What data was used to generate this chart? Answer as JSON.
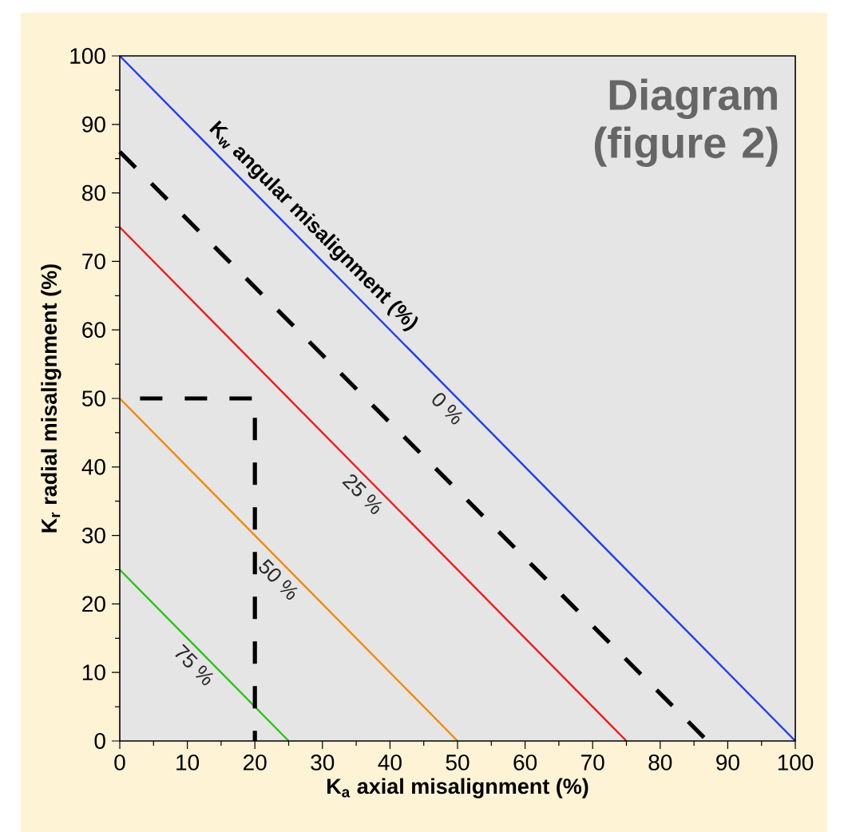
{
  "chart_data": {
    "type": "line",
    "title": "Diagram (figure 2)",
    "xlabel": "K$_{a}$ axial misalignment (%)",
    "ylabel": "K$_{r}$ radial misalignment (%)",
    "xlim": [
      0,
      100
    ],
    "ylim": [
      0,
      100
    ],
    "xticks": [
      0,
      10,
      20,
      30,
      40,
      50,
      60,
      70,
      80,
      90,
      100
    ],
    "yticks": [
      0,
      10,
      20,
      30,
      40,
      50,
      60,
      70,
      80,
      90,
      100
    ],
    "grid": false,
    "legend": false,
    "marker": "none",
    "series": [
      {
        "name": "0 %",
        "color": "#1f3cf5",
        "line_style": "solid",
        "x": [
          0,
          100
        ],
        "values": [
          100,
          0
        ]
      },
      {
        "name": "25 %",
        "color": "#f01c1c",
        "line_style": "solid",
        "x": [
          0,
          75
        ],
        "values": [
          75,
          0
        ]
      },
      {
        "name": "50 %",
        "color": "#f5890a",
        "line_style": "solid",
        "x": [
          0,
          50
        ],
        "values": [
          50,
          0
        ]
      },
      {
        "name": "75 %",
        "color": "#2dc21a",
        "line_style": "solid",
        "x": [
          0,
          25
        ],
        "values": [
          25,
          0
        ]
      },
      {
        "color": "#000000",
        "line_style": "dashed",
        "x": [
          0,
          87
        ],
        "values": [
          86,
          0
        ]
      },
      {
        "color": "#000000",
        "line_style": "dashed",
        "x": [
          3,
          20,
          20
        ],
        "values": [
          50,
          50,
          0
        ]
      }
    ],
    "annotations": [
      "K$_{w}$ angular misalignment (%)"
    ]
  }
}
